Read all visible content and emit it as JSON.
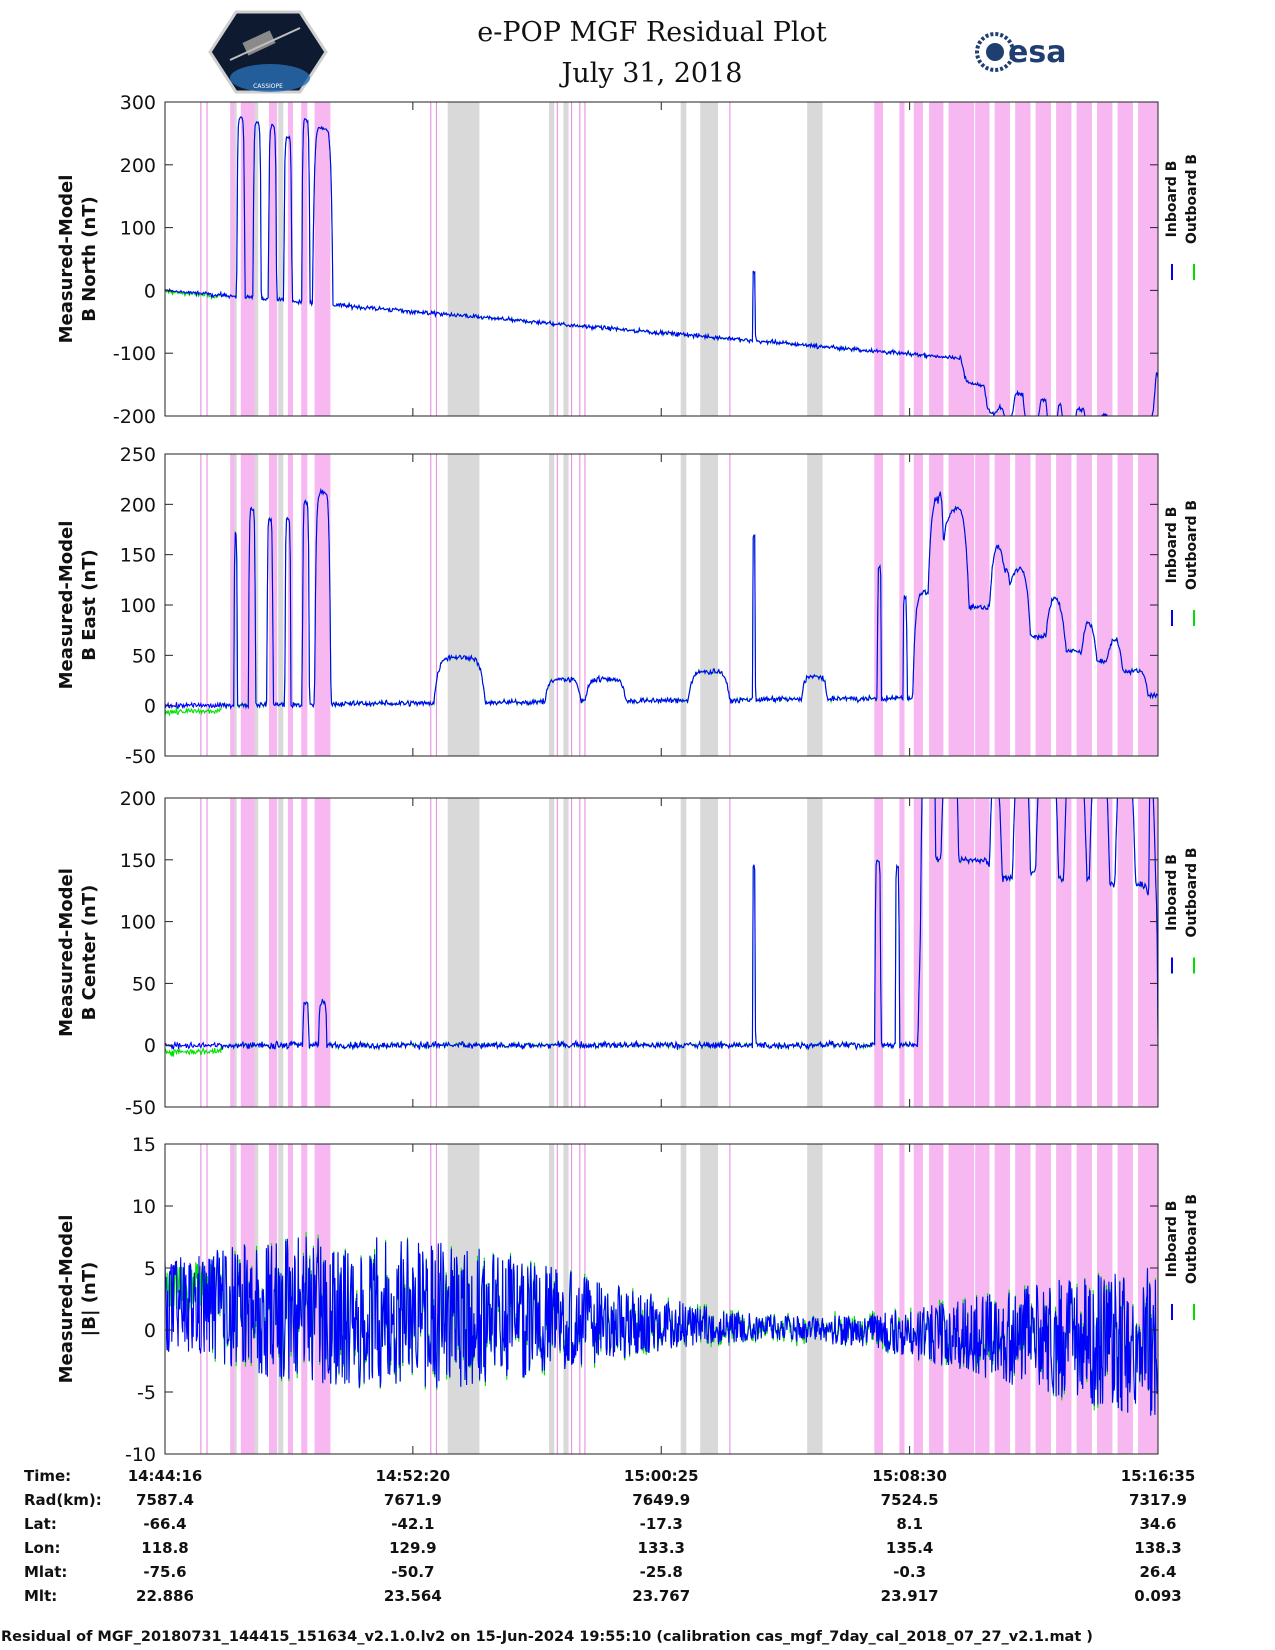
{
  "title_line1": "e-POP MGF Residual Plot",
  "title_line2": "July 31, 2018",
  "logos": {
    "mission": "CASSIOPE",
    "agency": "esa"
  },
  "colors": {
    "inboard": "#0000ff",
    "outboard": "#00e000",
    "shade_gray": "#d9d9d9",
    "shade_pink": "#f7b8f2",
    "pink_line": "#e884e0"
  },
  "chart_data": {
    "type": "line",
    "time_range_s": [
      0,
      1939
    ],
    "x_ticks_s": [
      0,
      484,
      969,
      1454,
      1939
    ],
    "shaded_intervals_s": {
      "gray": [
        [
          127,
          140
        ],
        [
          172,
          182
        ],
        [
          221,
          231
        ],
        [
          552,
          614
        ],
        [
          750,
          760
        ],
        [
          778,
          788
        ],
        [
          1007,
          1018
        ],
        [
          1045,
          1080
        ],
        [
          1254,
          1284
        ]
      ],
      "pink": [
        [
          128,
          136
        ],
        [
          148,
          175
        ],
        [
          203,
          219
        ],
        [
          240,
          250
        ],
        [
          266,
          278
        ],
        [
          292,
          323
        ],
        [
          1385,
          1402
        ],
        [
          1434,
          1444
        ],
        [
          1462,
          1480
        ],
        [
          1492,
          1520
        ],
        [
          1530,
          1580
        ],
        [
          1582,
          1610
        ],
        [
          1620,
          1650
        ],
        [
          1660,
          1690
        ],
        [
          1700,
          1730
        ],
        [
          1740,
          1770
        ],
        [
          1780,
          1810
        ],
        [
          1820,
          1850
        ],
        [
          1860,
          1890
        ],
        [
          1900,
          1939
        ]
      ],
      "pink_lines": [
        70,
        82,
        519,
        530,
        766,
        794,
        810,
        820,
        1103
      ]
    },
    "legend": [
      "Inboard B",
      "Outboard B"
    ],
    "panels": [
      {
        "ylabel": [
          "Measured-Model",
          "B North (nT)"
        ],
        "ylim": [
          -200,
          300
        ],
        "yticks": [
          -200,
          -100,
          0,
          100,
          200,
          300
        ],
        "mode": "spiky",
        "base_start": 0,
        "base_end": -135,
        "noise": 5,
        "start_offset": 2,
        "spikes": [
          [
            148,
            8,
            285
          ],
          [
            180,
            8,
            280
          ],
          [
            210,
            8,
            275
          ],
          [
            240,
            8,
            260
          ],
          [
            275,
            8,
            290
          ],
          [
            308,
            20,
            280
          ],
          [
            1150,
            3,
            110
          ],
          [
            1595,
            40,
            -40
          ],
          [
            1630,
            30,
            -45
          ],
          [
            1670,
            40,
            -50
          ],
          [
            1710,
            35,
            -55
          ],
          [
            1750,
            30,
            -60
          ],
          [
            1790,
            40,
            -65
          ],
          [
            1830,
            35,
            -70
          ],
          [
            1870,
            30,
            -75
          ],
          [
            1905,
            30,
            -80
          ]
        ]
      },
      {
        "ylabel": [
          "Measured-Model",
          "B East (nT)"
        ],
        "ylim": [
          -50,
          250
        ],
        "yticks": [
          -50,
          0,
          50,
          100,
          150,
          200,
          250
        ],
        "mode": "spiky",
        "base_start": 0,
        "base_end": 10,
        "noise": 4,
        "start_offset": 6,
        "spikes": [
          [
            138,
            3,
            170
          ],
          [
            170,
            7,
            195
          ],
          [
            205,
            6,
            185
          ],
          [
            240,
            6,
            185
          ],
          [
            275,
            7,
            200
          ],
          [
            308,
            16,
            210
          ],
          [
            575,
            50,
            45
          ],
          [
            777,
            35,
            22
          ],
          [
            860,
            40,
            22
          ],
          [
            1062,
            40,
            28
          ],
          [
            1150,
            3,
            165
          ],
          [
            1268,
            25,
            22
          ],
          [
            1395,
            4,
            130
          ],
          [
            1445,
            4,
            100
          ],
          [
            1490,
            30,
            105
          ],
          [
            1530,
            40,
            100
          ],
          [
            1580,
            70,
            90
          ],
          [
            1650,
            40,
            70
          ],
          [
            1700,
            60,
            60
          ],
          [
            1770,
            50,
            45
          ],
          [
            1830,
            40,
            35
          ],
          [
            1880,
            40,
            25
          ]
        ]
      },
      {
        "ylabel": [
          "Measured-Model",
          "B Center (nT)"
        ],
        "ylim": [
          -50,
          200
        ],
        "yticks": [
          -50,
          0,
          50,
          100,
          150,
          200
        ],
        "mode": "spiky",
        "base_start": 0,
        "base_end": 0,
        "noise": 4,
        "start_offset": 5,
        "spikes": [
          [
            275,
            6,
            35
          ],
          [
            308,
            8,
            35
          ],
          [
            1150,
            3,
            145
          ],
          [
            1392,
            6,
            150
          ],
          [
            1430,
            4,
            145
          ],
          [
            1490,
            15,
            120
          ],
          [
            1510,
            40,
            150
          ],
          [
            1575,
            60,
            150
          ],
          [
            1650,
            40,
            135
          ],
          [
            1700,
            45,
            140
          ],
          [
            1750,
            50,
            135
          ],
          [
            1800,
            45,
            135
          ],
          [
            1850,
            45,
            130
          ],
          [
            1895,
            40,
            130
          ],
          [
            1930,
            9,
            125
          ]
        ]
      },
      {
        "ylabel": [
          "Measured-Model",
          "|B| (nT)"
        ],
        "ylim": [
          -10,
          15
        ],
        "yticks": [
          -10,
          -5,
          0,
          5,
          10,
          15
        ],
        "mode": "noise",
        "base_start": 2,
        "base_end": -1,
        "noise": 4.2,
        "start_offset": 1.5,
        "spikes": []
      }
    ]
  },
  "table": {
    "row_labels": [
      "Time:",
      "Rad(km):",
      "Lat:",
      "Lon:",
      "Mlat:",
      "Mlt:"
    ],
    "columns": [
      [
        "14:44:16",
        "7587.4",
        "-66.4",
        "118.8",
        "-75.6",
        "22.886"
      ],
      [
        "14:52:20",
        "7671.9",
        "-42.1",
        "129.9",
        "-50.7",
        "23.564"
      ],
      [
        "15:00:25",
        "7649.9",
        "-17.3",
        "133.3",
        "-25.8",
        "23.767"
      ],
      [
        "15:08:30",
        "7524.5",
        "8.1",
        "135.4",
        "-0.3",
        "23.917"
      ],
      [
        "15:16:35",
        "7317.9",
        "34.6",
        "138.3",
        "26.4",
        "0.093"
      ]
    ]
  },
  "footer": "Residual of MGF_20180731_144415_151634_v2.1.0.lv2 on 15-Jun-2024 19:55:10 (calibration cas_mgf_7day_cal_2018_07_27_v2.1.mat )"
}
